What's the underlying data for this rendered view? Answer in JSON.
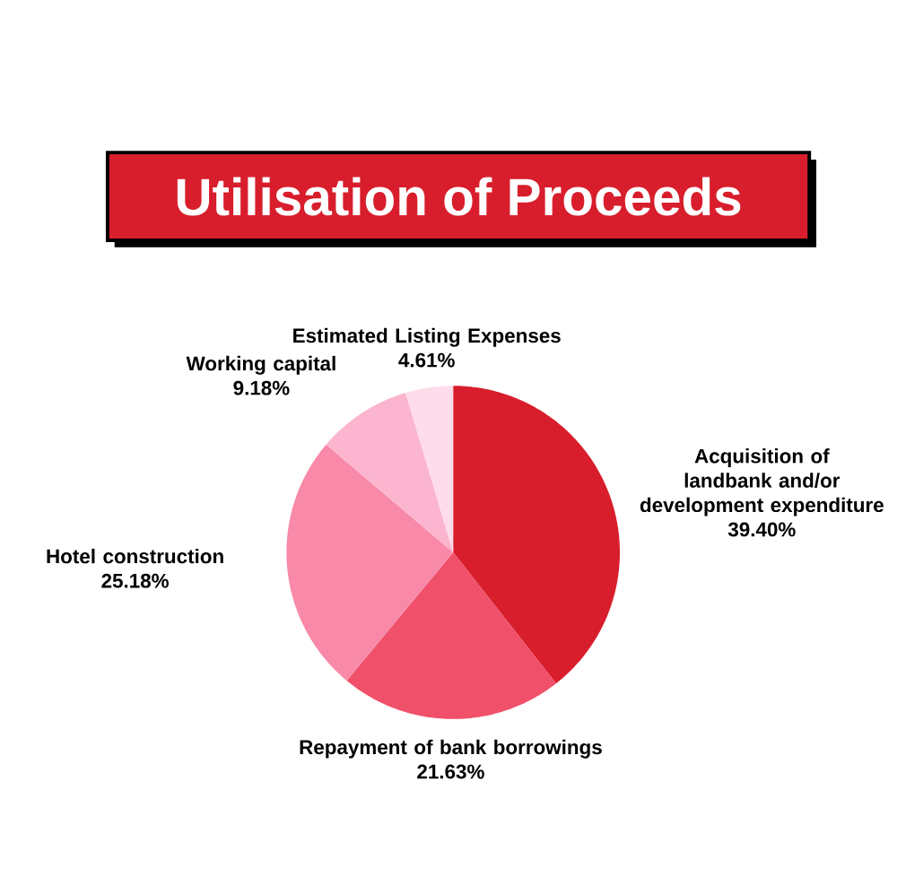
{
  "chart_data": {
    "type": "pie",
    "title": "Utilisation of Proceeds",
    "categories": [
      "Acquisition of landbank and/or development expenditure",
      "Repayment of bank borrowings",
      "Hotel construction",
      "Working capital",
      "Estimated Listing Expenses"
    ],
    "values": [
      39.4,
      21.63,
      25.18,
      9.18,
      4.61
    ],
    "value_labels": [
      "39.40%",
      "21.63%",
      "25.18%",
      "9.18%",
      "4.61%"
    ],
    "colors": [
      "#d81e2c",
      "#f0506a",
      "#f889a8",
      "#fbb5cf",
      "#ffdceb"
    ]
  }
}
